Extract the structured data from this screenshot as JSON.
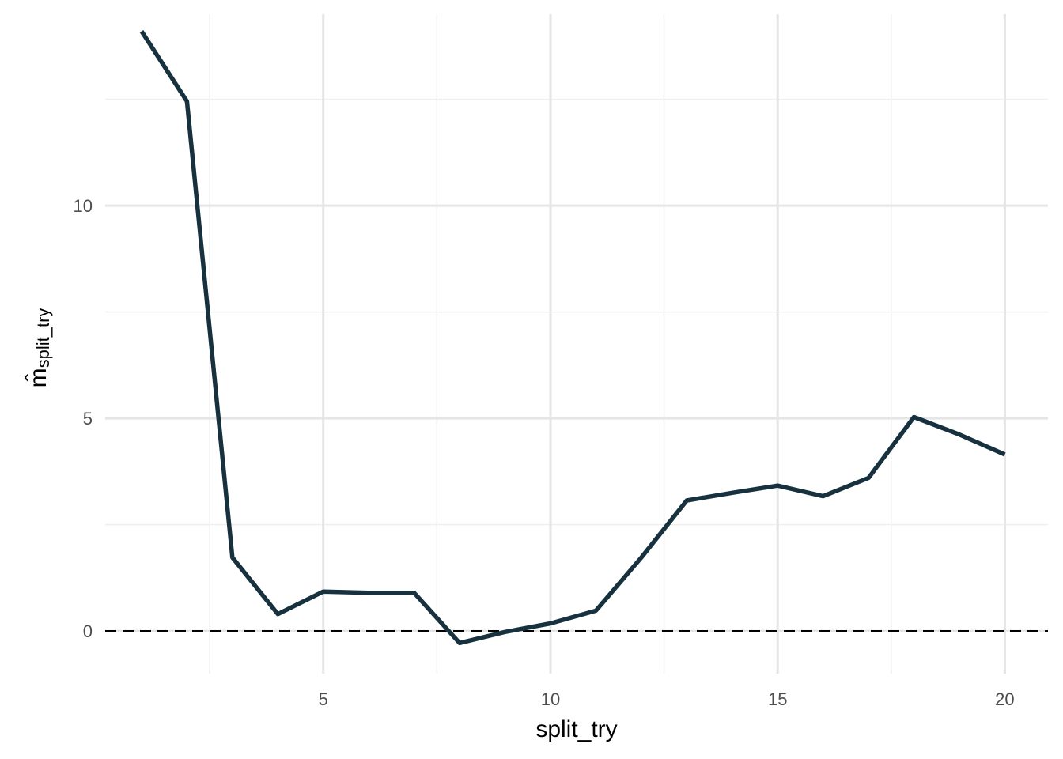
{
  "chart_data": {
    "type": "line",
    "xlabel": "split_try",
    "ylabel_main": "m̂",
    "ylabel_sub": "split_try",
    "x": [
      1,
      2,
      3,
      4,
      5,
      6,
      7,
      8,
      9,
      10,
      11,
      12,
      13,
      14,
      15,
      16,
      17,
      18,
      19,
      20
    ],
    "y": [
      14.1,
      12.45,
      1.73,
      0.4,
      0.93,
      0.9,
      0.9,
      -0.28,
      -0.02,
      0.18,
      0.48,
      1.73,
      3.07,
      3.25,
      3.42,
      3.17,
      3.6,
      5.03,
      4.62,
      4.15
    ],
    "xlim": [
      0.2,
      20.95
    ],
    "ylim": [
      -1.0,
      14.5
    ],
    "x_ticks": [
      5,
      10,
      15,
      20
    ],
    "x_tick_labels": [
      "5",
      "10",
      "15",
      "20"
    ],
    "x_minor_ticks": [
      2.5,
      7.5,
      12.5,
      17.5
    ],
    "y_ticks": [
      0,
      5,
      10
    ],
    "y_tick_labels": [
      "0",
      "5",
      "10"
    ],
    "y_minor_ticks": [
      2.5,
      7.5,
      12.5
    ],
    "reference_line": {
      "y": 0,
      "style": "dashed"
    },
    "grid": true,
    "colors": {
      "line": "#17313F",
      "grid_major": "#e5e5e5",
      "grid_minor": "#efefef",
      "reference": "#000000"
    }
  }
}
